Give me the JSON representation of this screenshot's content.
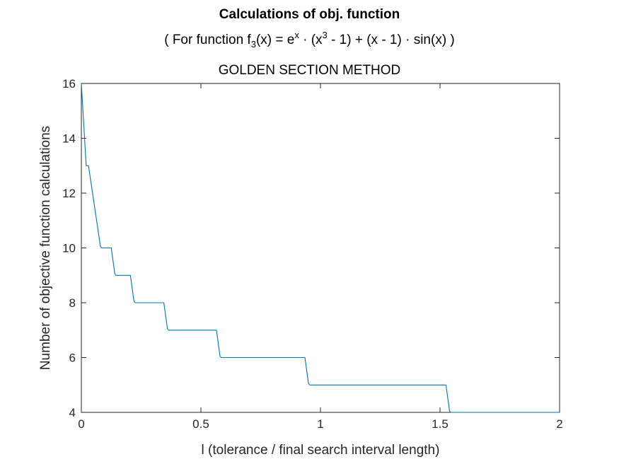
{
  "chart_data": {
    "type": "line",
    "title": "Calculations of obj. function",
    "subtitle": {
      "prefix": "( For function f",
      "sub": "3",
      "mid1": "(x) = e",
      "sup1": "x",
      "mid2": " · (x",
      "sup2": "3",
      "suffix": " - 1) + (x - 1) · sin(x) )"
    },
    "method": "GOLDEN SECTION METHOD",
    "xlabel": "l (tolerance / final search interval length)",
    "ylabel": "Number of objective function calculations",
    "xlim": [
      0,
      2
    ],
    "ylim": [
      4,
      16
    ],
    "xticks": [
      0,
      0.5,
      1,
      1.5,
      2
    ],
    "xtick_labels": [
      "0",
      "0.5",
      "1",
      "1.5",
      "2"
    ],
    "yticks": [
      4,
      6,
      8,
      10,
      12,
      14,
      16
    ],
    "ytick_labels": [
      "4",
      "6",
      "8",
      "10",
      "12",
      "14",
      "16"
    ],
    "grid": false,
    "line_color": "#0072BD",
    "series": [
      {
        "x": [
          0.0,
          0.02,
          0.03,
          0.08,
          0.085,
          0.12,
          0.125,
          0.14,
          0.145,
          0.2,
          0.205,
          0.22,
          0.225,
          0.34,
          0.345,
          0.36,
          0.365,
          0.56,
          0.565,
          0.58,
          0.585,
          0.93,
          0.935,
          0.95,
          0.955,
          1.52,
          1.525,
          1.54,
          1.545,
          2.0
        ],
        "y": [
          16,
          13,
          13,
          10.05,
          10,
          10,
          10,
          9.05,
          9,
          9,
          9,
          8.05,
          8,
          8,
          8,
          7.05,
          7,
          7,
          7,
          6.05,
          6,
          6,
          6,
          5.05,
          5,
          5,
          5,
          4.05,
          4,
          4
        ]
      }
    ]
  }
}
